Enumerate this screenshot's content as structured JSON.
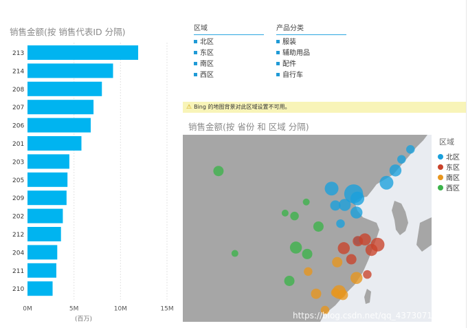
{
  "bar_chart": {
    "title": "销售金额(按 销售代表ID 分隔)",
    "x_axis_unit": "(百万)",
    "x_ticks": [
      "0M",
      "5M",
      "10M",
      "15M"
    ]
  },
  "slicers": [
    {
      "title": "区域",
      "items": [
        "北区",
        "东区",
        "南区",
        "西区"
      ]
    },
    {
      "title": "产品分类",
      "items": [
        "服装",
        "辅助用品",
        "配件",
        "自行车"
      ]
    }
  ],
  "warning": {
    "icon": "warning-icon",
    "text": "Bing 的地图背景对此区域设置不可用。"
  },
  "map": {
    "title": "销售金额(按 省份 和 区域 分隔)",
    "legend_title": "区域",
    "legend": [
      {
        "name": "北区",
        "color": "#1aa0dc"
      },
      {
        "name": "东区",
        "color": "#c9432a"
      },
      {
        "name": "南区",
        "color": "#e8961e"
      },
      {
        "name": "西区",
        "color": "#3cb34a"
      }
    ]
  },
  "watermark": "https://blog.csdn.net/qq_43730719",
  "colors": {
    "bar": "#00b4f0",
    "land": "#a6a6a6",
    "sea": "#e9ecf1",
    "accent": "#1f9ad6"
  },
  "chart_data": [
    {
      "type": "bar",
      "orientation": "horizontal",
      "title": "销售金额(按 销售代表ID 分隔)",
      "xlabel": "(百万)",
      "categories": [
        "213",
        "214",
        "208",
        "207",
        "206",
        "201",
        "203",
        "205",
        "209",
        "202",
        "212",
        "204",
        "211",
        "210"
      ],
      "values": [
        11.9,
        9.2,
        8.0,
        7.1,
        6.8,
        5.8,
        4.5,
        4.3,
        4.2,
        3.8,
        3.6,
        3.2,
        3.1,
        2.7
      ],
      "xlim": [
        0,
        15
      ],
      "x_tick_values": [
        0,
        5,
        10,
        15
      ],
      "grid": true
    },
    {
      "type": "scatter",
      "subtype": "bubble-map",
      "title": "销售金额(按 省份 和 区域 分隔)",
      "legend_title": "区域",
      "legend_position": "right",
      "series": [
        {
          "name": "北区",
          "points": [
            [
              126.6,
              45.8,
              3
            ],
            [
              125.3,
              43.9,
              5
            ],
            [
              123.4,
              41.8,
              6
            ],
            [
              116.4,
              39.9,
              9
            ],
            [
              117.2,
              39.1,
              6
            ],
            [
              114.5,
              38.0,
              5
            ],
            [
              112.5,
              37.9,
              4
            ],
            [
              111.7,
              40.8,
              6
            ],
            [
              117.0,
              36.7,
              5
            ],
            [
              113.6,
              34.8,
              3
            ],
            [
              117.3,
              31.9,
              3
            ],
            [
              128.5,
              47.5,
              3
            ]
          ]
        },
        {
          "name": "东区",
          "points": [
            [
              121.5,
              31.2,
              6
            ],
            [
              120.2,
              30.3,
              5
            ],
            [
              118.8,
              32.1,
              5
            ],
            [
              117.3,
              31.8,
              4
            ],
            [
              115.9,
              28.7,
              4
            ],
            [
              119.3,
              26.1,
              3
            ],
            [
              114.3,
              30.6,
              5
            ]
          ]
        },
        {
          "name": "南区",
          "points": [
            [
              113.3,
              23.1,
              6
            ],
            [
              114.1,
              22.6,
              4
            ],
            [
              110.3,
              20.0,
              3
            ],
            [
              108.4,
              22.8,
              4
            ],
            [
              117.0,
              25.5,
              5
            ],
            [
              112.9,
              28.2,
              4
            ],
            [
              106.7,
              26.6,
              3
            ],
            [
              112.5,
              23.0,
              3
            ]
          ]
        },
        {
          "name": "西区",
          "points": [
            [
              104.1,
              30.7,
              5
            ],
            [
              106.5,
              29.6,
              4
            ],
            [
              102.7,
              25.0,
              4
            ],
            [
              108.9,
              34.3,
              4
            ],
            [
              103.8,
              36.1,
              3
            ],
            [
              101.8,
              36.6,
              2
            ],
            [
              91.1,
              29.7,
              2
            ],
            [
              87.6,
              43.8,
              4
            ],
            [
              106.3,
              38.5,
              2
            ]
          ]
        }
      ]
    }
  ]
}
